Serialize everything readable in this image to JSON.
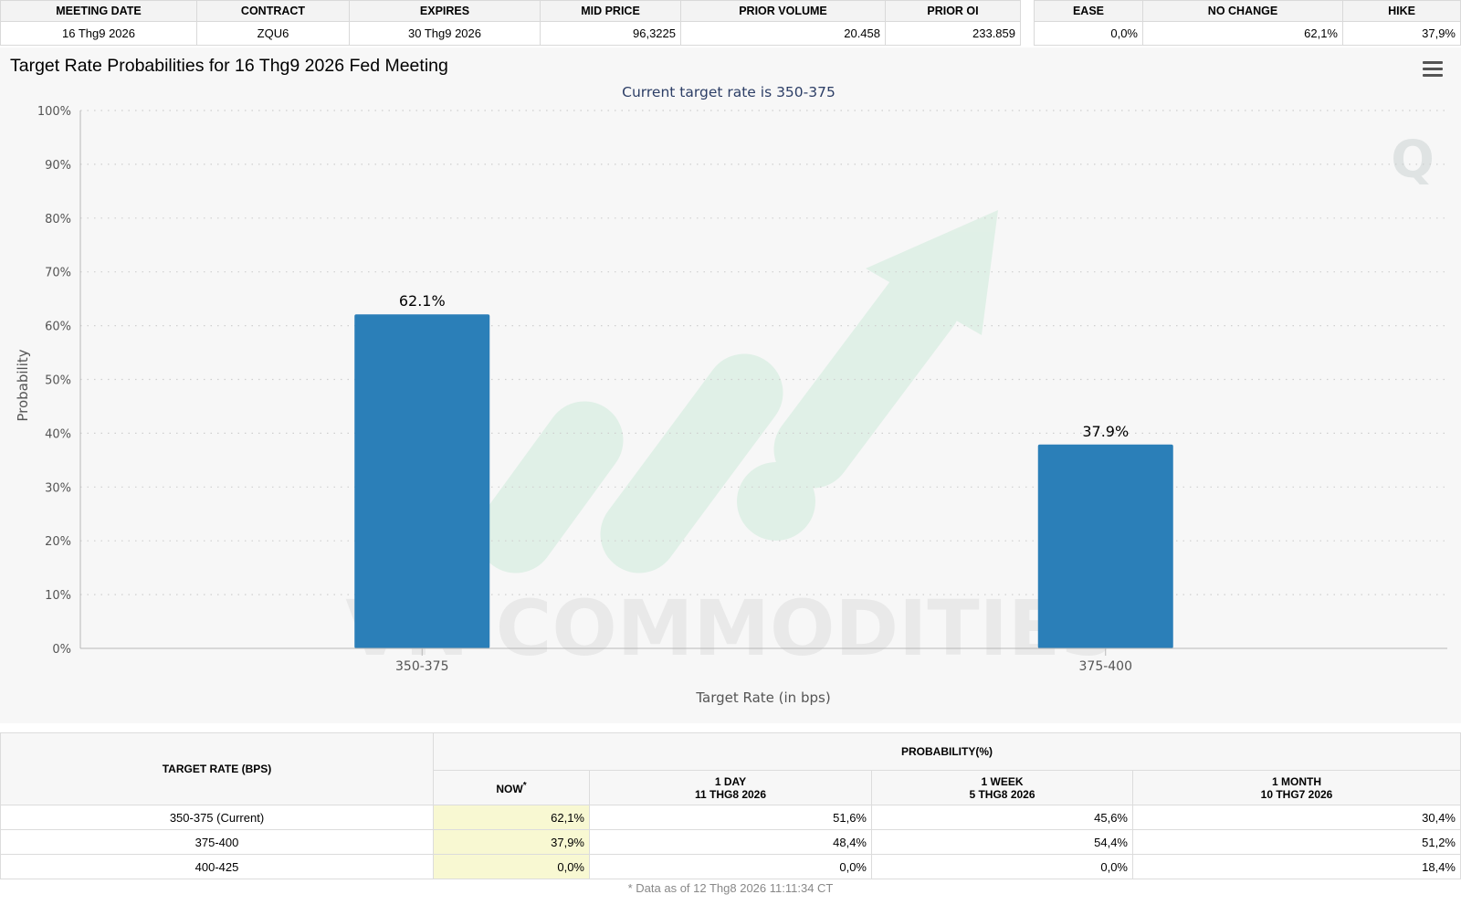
{
  "top_table": {
    "headers": [
      "MEETING DATE",
      "CONTRACT",
      "EXPIRES",
      "MID PRICE",
      "PRIOR VOLUME",
      "PRIOR OI"
    ],
    "values": [
      "16 Thg9 2026",
      "ZQU6",
      "30 Thg9 2026",
      "96,3225",
      "20.458",
      "233.859"
    ]
  },
  "prob_table": {
    "headers": [
      "EASE",
      "NO CHANGE",
      "HIKE"
    ],
    "values": [
      "0,0%",
      "62,1%",
      "37,9%"
    ]
  },
  "chart_menu_icon": "hamburger-menu-icon",
  "watermark": {
    "text": "VN COMMODITIES",
    "logo_icon": "rising-arrow-logo",
    "corner_icon": "q-logo"
  },
  "colors": {
    "bar": "#2b7fb8",
    "highlight": "#f8f8d2"
  },
  "chart_data": {
    "type": "bar",
    "title": "Target Rate Probabilities for 16 Thg9 2026 Fed Meeting",
    "subtitle": "Current target rate is 350-375",
    "xlabel": "Target Rate (in bps)",
    "ylabel": "Probability",
    "categories": [
      "350-375",
      "375-400"
    ],
    "values": [
      62.1,
      37.9
    ],
    "data_labels": [
      "62.1%",
      "37.9%"
    ],
    "ylim": [
      0,
      100
    ],
    "yticks": [
      0,
      10,
      20,
      30,
      40,
      50,
      60,
      70,
      80,
      90,
      100
    ],
    "ytick_labels": [
      "0%",
      "10%",
      "20%",
      "30%",
      "40%",
      "50%",
      "60%",
      "70%",
      "80%",
      "90%",
      "100%"
    ],
    "grid": true
  },
  "prob_history": {
    "header_target": "TARGET RATE (BPS)",
    "header_prob": "PROBABILITY(%)",
    "col_now": "NOW",
    "col_now_mark": "*",
    "cols": [
      {
        "line1": "1 DAY",
        "line2": "11 THG8 2026"
      },
      {
        "line1": "1 WEEK",
        "line2": "5 THG8 2026"
      },
      {
        "line1": "1 MONTH",
        "line2": "10 THG7 2026"
      }
    ],
    "rows": [
      {
        "rate": "350-375 (Current)",
        "now": "62,1%",
        "d1": "51,6%",
        "w1": "45,6%",
        "m1": "30,4%"
      },
      {
        "rate": "375-400",
        "now": "37,9%",
        "d1": "48,4%",
        "w1": "54,4%",
        "m1": "51,2%"
      },
      {
        "rate": "400-425",
        "now": "0,0%",
        "d1": "0,0%",
        "w1": "0,0%",
        "m1": "18,4%"
      }
    ],
    "footnote": "* Data as of 12 Thg8 2026 11:11:34 CT"
  }
}
